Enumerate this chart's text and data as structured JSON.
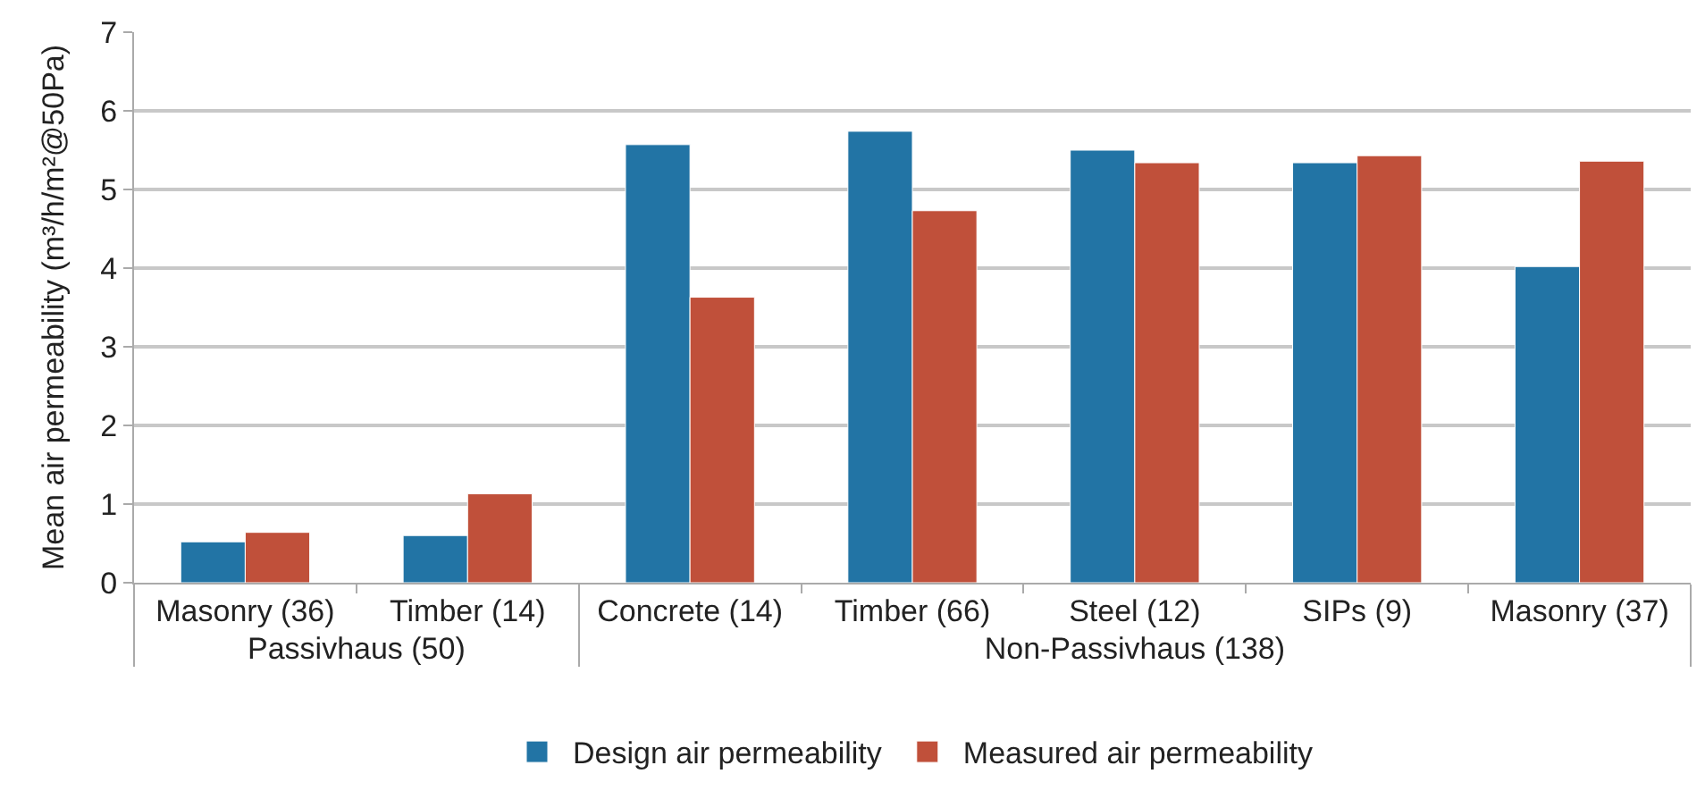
{
  "chart_data": {
    "type": "bar",
    "ylabel": "Mean air permeability (m³/h/m²@50Pa)",
    "categories": [
      "Masonry (36)",
      "Timber (14)",
      "Concrete (14)",
      "Timber (66)",
      "Steel (12)",
      "SIPs (9)",
      "Masonry (37)"
    ],
    "annotations": [
      "Passivhaus (50)",
      "Non-Passivhaus (138)"
    ],
    "series": [
      {
        "name": "Design air permeability",
        "color": "#2274a5",
        "values": [
          0.52,
          0.6,
          5.57,
          5.74,
          5.5,
          5.34,
          4.02
        ]
      },
      {
        "name": "Measured air permeability",
        "color": "#c0503a",
        "values": [
          0.64,
          1.13,
          3.63,
          4.73,
          5.34,
          5.43,
          5.36
        ]
      }
    ],
    "ylim": [
      0,
      7
    ],
    "yticks": [
      0,
      1,
      2,
      3,
      4,
      5,
      6,
      7
    ],
    "grid": "y",
    "legend": "bottom"
  }
}
